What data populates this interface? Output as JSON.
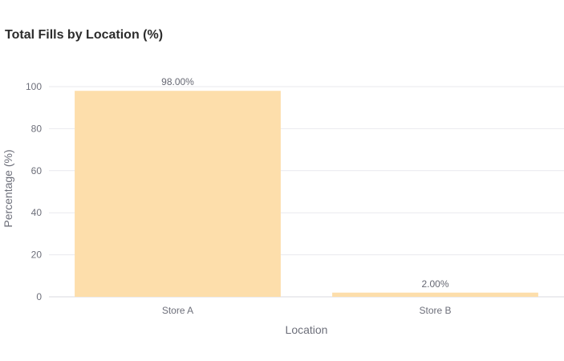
{
  "chart_data": {
    "type": "bar",
    "title": "Total Fills by Location (%)",
    "categories": [
      "Store A",
      "Store B"
    ],
    "values": [
      98.0,
      2.0
    ],
    "data_labels": [
      "98.00%",
      "2.00%"
    ],
    "xlabel": "Location",
    "ylabel": "Percentage (%)",
    "ylim": [
      0,
      100
    ],
    "yticks": [
      0,
      20,
      40,
      60,
      80,
      100
    ],
    "grid": true,
    "colors": {
      "bar": "#fddeab",
      "grid": "#e9e9ee",
      "axis": "#d9d9df"
    }
  }
}
